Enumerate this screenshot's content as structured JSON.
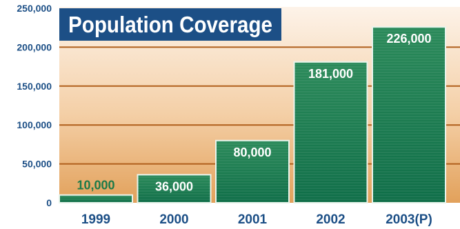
{
  "chart_data": {
    "type": "bar",
    "title": "Population Coverage",
    "categories": [
      "1999",
      "2000",
      "2001",
      "2002",
      "2003(P)"
    ],
    "values": [
      10000,
      36000,
      80000,
      181000,
      226000
    ],
    "value_labels": [
      "10,000",
      "36,000",
      "80,000",
      "181,000",
      "226,000"
    ],
    "y_ticks": [
      "0",
      "50,000",
      "100,000",
      "150,000",
      "200,000",
      "250,000"
    ],
    "xlabel": "",
    "ylabel": "",
    "ylim": [
      0,
      250000
    ],
    "grid": true,
    "legend": "none",
    "colors": {
      "bar_top": "#2b8a5a",
      "bar_bottom": "#0f6e48",
      "bar_edge": "#e9f4ec",
      "background_top": "#fdf3e9",
      "background_bottom": "#e2a15b",
      "gridline": "#b05f1c",
      "text": "#1c4f86",
      "title_box": "#1c4f86",
      "label_small_value": "#1d7a48",
      "label_on_bar": "#ffffff"
    }
  }
}
